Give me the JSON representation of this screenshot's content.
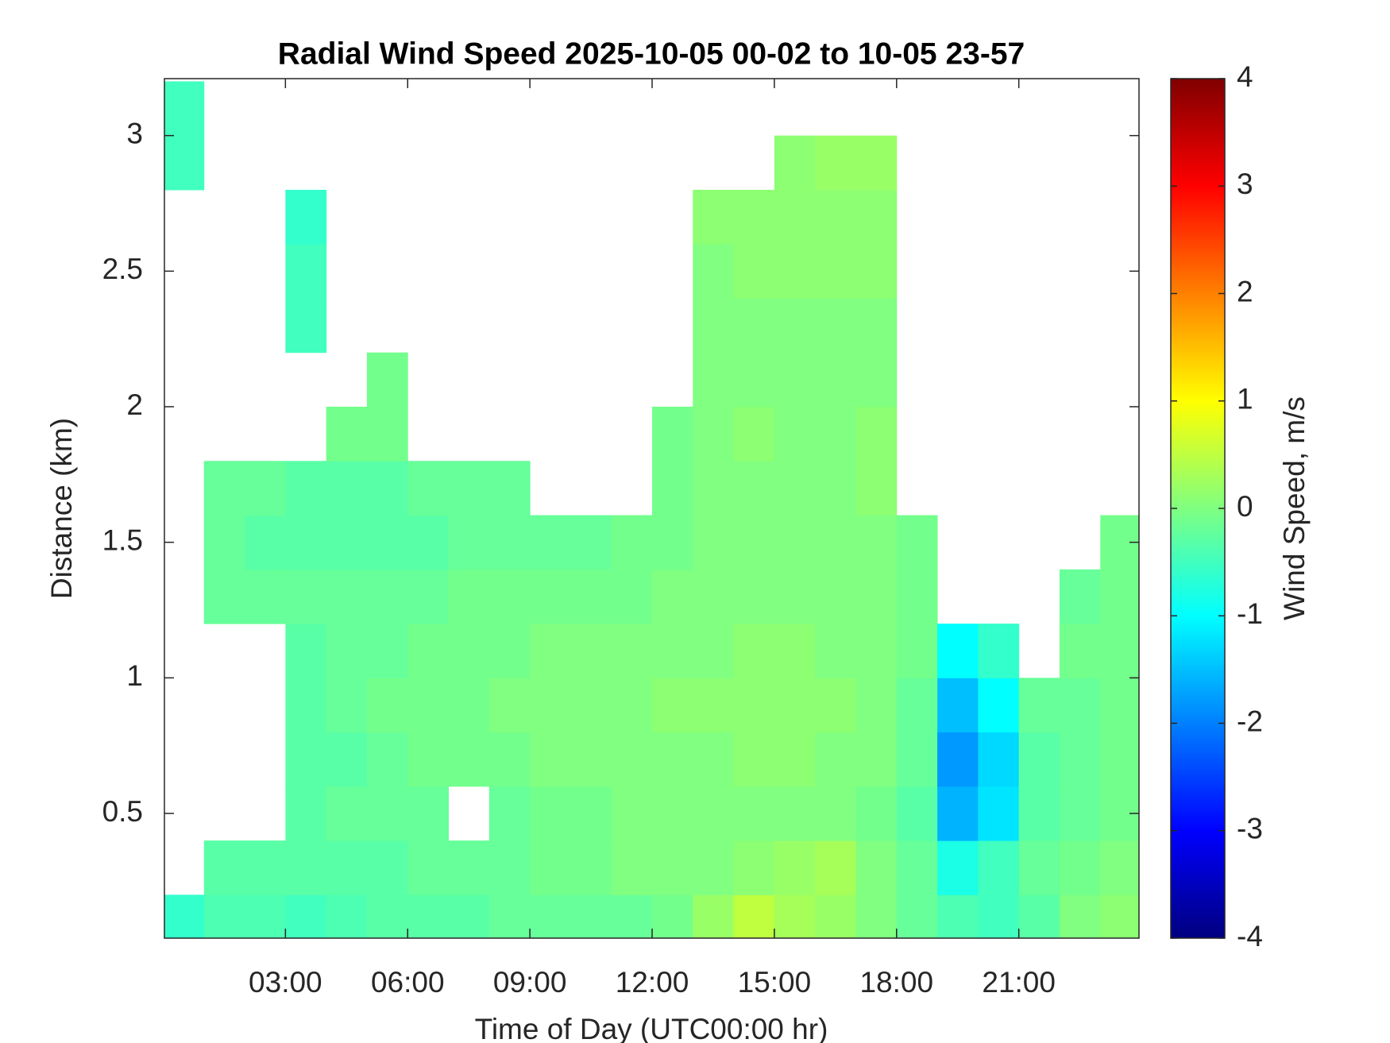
{
  "chart_data": {
    "type": "heatmap",
    "title": "Radial Wind Speed 2025-10-05 00-02 to 10-05 23-57",
    "xlabel": "Time of Day (UTC00:00 hr)",
    "ylabel": "Distance (km)",
    "colorbar_label": "Wind Speed, m/s",
    "colormap": "jet",
    "xlim": [
      0.03,
      23.95
    ],
    "ylim": [
      0.04,
      3.21
    ],
    "clim": [
      -4,
      4
    ],
    "xticks": [
      {
        "value": 3,
        "label": "03:00"
      },
      {
        "value": 6,
        "label": "06:00"
      },
      {
        "value": 9,
        "label": "09:00"
      },
      {
        "value": 12,
        "label": "12:00"
      },
      {
        "value": 15,
        "label": "15:00"
      },
      {
        "value": 18,
        "label": "18:00"
      },
      {
        "value": 21,
        "label": "21:00"
      }
    ],
    "yticks": [
      0.5,
      1,
      1.5,
      2,
      2.5,
      3
    ],
    "cticks": [
      -4,
      -3,
      -2,
      -1,
      0,
      1,
      2,
      3,
      4
    ],
    "x": [
      0.5,
      1.5,
      2.5,
      3.5,
      4.5,
      5.5,
      6.5,
      7.5,
      8.5,
      9.5,
      10.5,
      11.5,
      12.5,
      13.5,
      14.5,
      15.5,
      16.5,
      17.5,
      18.5,
      19.5,
      20.5,
      21.5,
      22.5,
      23.5
    ],
    "y": [
      0.1,
      0.3,
      0.5,
      0.7,
      0.9,
      1.1,
      1.3,
      1.5,
      1.7,
      1.9,
      2.1,
      2.3,
      2.5,
      2.7,
      2.9,
      3.1
    ],
    "z": [
      [
        -0.6,
        null,
        null,
        null,
        null,
        null,
        null,
        null,
        null,
        null,
        null,
        null,
        null,
        null,
        -0.5,
        -0.5
      ],
      [
        -0.4,
        -0.3,
        null,
        null,
        null,
        null,
        -0.2,
        -0.2,
        -0.2,
        null,
        null,
        null,
        null,
        null,
        null,
        null
      ],
      [
        -0.4,
        -0.3,
        null,
        null,
        null,
        null,
        -0.2,
        -0.3,
        -0.2,
        null,
        null,
        null,
        null,
        null,
        null,
        null
      ],
      [
        -0.5,
        -0.3,
        -0.3,
        -0.3,
        -0.3,
        -0.3,
        -0.2,
        -0.3,
        -0.3,
        null,
        null,
        -0.5,
        -0.5,
        -0.6,
        null,
        null
      ],
      [
        -0.4,
        -0.3,
        -0.2,
        -0.3,
        -0.2,
        -0.2,
        -0.2,
        -0.3,
        -0.3,
        -0.1,
        null,
        null,
        null,
        null,
        null,
        null
      ],
      [
        -0.3,
        -0.3,
        -0.2,
        -0.2,
        -0.1,
        -0.2,
        -0.2,
        -0.3,
        -0.3,
        -0.1,
        -0.1,
        null,
        null,
        null,
        null,
        null
      ],
      [
        -0.3,
        -0.2,
        -0.2,
        -0.1,
        -0.1,
        -0.1,
        -0.2,
        -0.3,
        -0.2,
        null,
        null,
        null,
        null,
        null,
        null,
        null
      ],
      [
        -0.3,
        -0.2,
        null,
        -0.1,
        -0.1,
        -0.1,
        -0.1,
        -0.2,
        -0.2,
        null,
        null,
        null,
        null,
        null,
        null,
        null
      ],
      [
        -0.2,
        -0.2,
        -0.2,
        -0.1,
        0,
        -0.1,
        -0.1,
        -0.2,
        -0.2,
        null,
        null,
        null,
        null,
        null,
        null,
        null
      ],
      [
        -0.2,
        -0.1,
        -0.1,
        0,
        0,
        0,
        -0.1,
        -0.2,
        null,
        null,
        null,
        null,
        null,
        null,
        null,
        null
      ],
      [
        -0.2,
        -0.1,
        -0.1,
        0,
        0,
        0,
        -0.1,
        -0.2,
        null,
        null,
        null,
        null,
        null,
        null,
        null,
        null
      ],
      [
        -0.2,
        0,
        0,
        0,
        0,
        0,
        -0.1,
        -0.1,
        null,
        null,
        null,
        null,
        null,
        null,
        null,
        null
      ],
      [
        -0.1,
        0,
        0,
        0,
        0.1,
        0,
        0,
        -0.1,
        -0.1,
        -0.1,
        null,
        null,
        null,
        null,
        null,
        null
      ],
      [
        0.2,
        0,
        0,
        0,
        0.1,
        0,
        0,
        0,
        0,
        0,
        0,
        0,
        0,
        0.1,
        null,
        null
      ],
      [
        0.5,
        0.1,
        0,
        0.1,
        0.1,
        0.1,
        0,
        0,
        0,
        0.1,
        0,
        0,
        0.1,
        0.1,
        null,
        null
      ],
      [
        0.3,
        0.2,
        0,
        0.1,
        0.1,
        0.1,
        0,
        0,
        0,
        0,
        0,
        0,
        0.1,
        0.1,
        0.1,
        null
      ],
      [
        0.2,
        0.3,
        0,
        0,
        0.1,
        0,
        0,
        0,
        0,
        0,
        0,
        0,
        0.1,
        0.1,
        0.2,
        null
      ],
      [
        0,
        0,
        -0.1,
        0,
        0,
        0,
        0,
        0,
        0.1,
        0.1,
        0,
        0,
        0.1,
        0.1,
        0.2,
        null
      ],
      [
        -0.2,
        -0.2,
        -0.3,
        -0.2,
        -0.2,
        -0.1,
        -0.1,
        -0.1,
        null,
        null,
        null,
        null,
        null,
        null,
        null,
        null
      ],
      [
        -0.4,
        -0.8,
        -1.6,
        -1.8,
        -1.5,
        -1,
        null,
        null,
        null,
        null,
        null,
        null,
        null,
        null,
        null,
        null
      ],
      [
        -0.5,
        -0.5,
        -1.2,
        -1.3,
        -1,
        -0.6,
        null,
        null,
        null,
        null,
        null,
        null,
        null,
        null,
        null,
        null
      ],
      [
        -0.3,
        -0.2,
        -0.3,
        -0.3,
        -0.2,
        null,
        null,
        null,
        null,
        null,
        null,
        null,
        null,
        null,
        null,
        null
      ],
      [
        0,
        -0.1,
        -0.2,
        -0.2,
        -0.2,
        -0.1,
        -0.2,
        null,
        null,
        null,
        null,
        null,
        null,
        null,
        null,
        null
      ],
      [
        0.1,
        0,
        -0.1,
        -0.1,
        -0.1,
        -0.1,
        -0.1,
        -0.1,
        null,
        null,
        null,
        null,
        null,
        null,
        null,
        null
      ]
    ]
  }
}
